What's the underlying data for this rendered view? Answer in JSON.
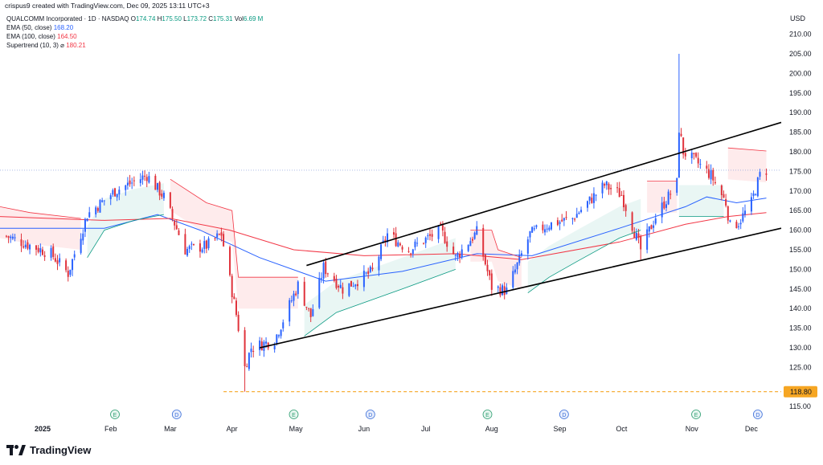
{
  "header": {
    "attribution": "crispus9 created with TradingView.com, Dec 09, 2025 13:11 UTC+3"
  },
  "legend": {
    "symbol": "QUALCOMM Incorporated · 1D · NASDAQ",
    "ohlc": [
      {
        "k": "O",
        "v": "174.74"
      },
      {
        "k": "H",
        "v": "175.50"
      },
      {
        "k": "L",
        "v": "173.72"
      },
      {
        "k": "C",
        "v": "175.31"
      },
      {
        "k": "Vol",
        "v": "6.69 M"
      }
    ],
    "indicators": [
      {
        "label": "EMA (50, close)",
        "value": "168.20",
        "color": "#2962ff"
      },
      {
        "label": "EMA (100, close)",
        "value": "164.50",
        "color": "#f23645"
      },
      {
        "label": "Supertrend (10, 3)",
        "value": "180.21",
        "color": "#f23645",
        "icon": "eye-off-icon"
      }
    ]
  },
  "branding": {
    "logo_text": "TradingView",
    "logo_icon": "tradingview-logo-icon"
  },
  "colors": {
    "up": "#2962ff",
    "down": "#e0323b",
    "ema50": "#2962ff",
    "ema100": "#f23645",
    "support": "#f6a623",
    "trendline": "#000000",
    "supertrend_up": "#089981",
    "supertrend_down": "#f23645"
  },
  "chart_data": {
    "type": "candlestick",
    "currency": "USD",
    "y_ticks": [
      "210.00",
      "205.00",
      "200.00",
      "195.00",
      "190.00",
      "185.00",
      "180.00",
      "175.00",
      "170.00",
      "165.00",
      "160.00",
      "155.00",
      "150.00",
      "145.00",
      "140.00",
      "135.00",
      "130.00",
      "125.00",
      "120.00",
      "115.00"
    ],
    "ylim": [
      113,
      213
    ],
    "x_labels": [
      "2025",
      "Feb",
      "Mar",
      "Apr",
      "May",
      "Jun",
      "Jul",
      "Aug",
      "Sep",
      "Oct",
      "Nov",
      "Dec"
    ],
    "x_label_dates": [
      "2025-01-02",
      "2025-02-03",
      "2025-03-03",
      "2025-04-01",
      "2025-05-01",
      "2025-06-02",
      "2025-07-01",
      "2025-08-01",
      "2025-09-02",
      "2025-10-01",
      "2025-11-03",
      "2025-12-01"
    ],
    "x_range": [
      "2024-12-13",
      "2025-12-15"
    ],
    "events": [
      {
        "type": "E",
        "date": "2025-02-05"
      },
      {
        "type": "D",
        "date": "2025-03-06"
      },
      {
        "type": "E",
        "date": "2025-04-30"
      },
      {
        "type": "D",
        "date": "2025-06-05"
      },
      {
        "type": "E",
        "date": "2025-07-30"
      },
      {
        "type": "D",
        "date": "2025-09-04"
      },
      {
        "type": "E",
        "date": "2025-11-05"
      },
      {
        "type": "D",
        "date": "2025-12-04"
      }
    ],
    "support_level": {
      "value": 118.8,
      "label": "118.80",
      "from": "2025-03-28"
    },
    "last_price": {
      "value": 175.31
    },
    "trendlines": [
      {
        "from": {
          "date": "2025-05-06",
          "value": 151.0
        },
        "to": {
          "date": "2025-12-15",
          "value": 187.5
        }
      },
      {
        "from": {
          "date": "2025-04-14",
          "value": 130.0
        },
        "to": {
          "date": "2025-12-15",
          "value": 160.5
        }
      }
    ],
    "key_points": [
      {
        "date": "2024-12-16",
        "value": 158.5
      },
      {
        "date": "2025-01-06",
        "value": 154.0
      },
      {
        "date": "2025-01-14",
        "value": 149.0
      },
      {
        "date": "2025-01-23",
        "value": 164.0
      },
      {
        "date": "2025-02-05",
        "value": 170.0
      },
      {
        "date": "2025-02-20",
        "value": 174.0
      },
      {
        "date": "2025-02-28",
        "value": 168.5
      },
      {
        "date": "2025-03-10",
        "value": 155.0
      },
      {
        "date": "2025-03-20",
        "value": 156.0
      },
      {
        "date": "2025-03-27",
        "value": 159.0
      },
      {
        "date": "2025-04-03",
        "value": 138.5
      },
      {
        "date": "2025-04-07",
        "value": 125.0
      },
      {
        "date": "2025-04-10",
        "value": 130.0
      },
      {
        "date": "2025-04-21",
        "value": 132.0
      },
      {
        "date": "2025-05-02",
        "value": 146.0
      },
      {
        "date": "2025-05-08",
        "value": 138.0
      },
      {
        "date": "2025-05-14",
        "value": 150.5
      },
      {
        "date": "2025-05-23",
        "value": 145.0
      },
      {
        "date": "2025-06-06",
        "value": 149.5
      },
      {
        "date": "2025-06-13",
        "value": 159.0
      },
      {
        "date": "2025-06-23",
        "value": 155.0
      },
      {
        "date": "2025-07-08",
        "value": 160.0
      },
      {
        "date": "2025-07-15",
        "value": 153.0
      },
      {
        "date": "2025-07-25",
        "value": 159.5
      },
      {
        "date": "2025-08-01",
        "value": 145.5
      },
      {
        "date": "2025-08-08",
        "value": 144.5
      },
      {
        "date": "2025-08-19",
        "value": 159.0
      },
      {
        "date": "2025-08-28",
        "value": 161.5
      },
      {
        "date": "2025-09-08",
        "value": 163.0
      },
      {
        "date": "2025-09-23",
        "value": 171.5
      },
      {
        "date": "2025-10-01",
        "value": 169.0
      },
      {
        "date": "2025-10-10",
        "value": 155.0
      },
      {
        "date": "2025-10-17",
        "value": 163.5
      },
      {
        "date": "2025-10-27",
        "value": 172.0
      },
      {
        "date": "2025-10-28",
        "value": 186.0
      },
      {
        "date": "2025-10-30",
        "value": 180.0
      },
      {
        "date": "2025-11-06",
        "value": 177.0
      },
      {
        "date": "2025-11-12",
        "value": 174.0
      },
      {
        "date": "2025-11-19",
        "value": 167.0
      },
      {
        "date": "2025-11-21",
        "value": 161.0
      },
      {
        "date": "2025-11-25",
        "value": 162.0
      },
      {
        "date": "2025-12-01",
        "value": 167.0
      },
      {
        "date": "2025-12-05",
        "value": 174.0
      },
      {
        "date": "2025-12-08",
        "value": 175.31
      }
    ],
    "ema50_points": [
      {
        "date": "2024-12-13",
        "value": 160.5
      },
      {
        "date": "2025-01-31",
        "value": 160.5
      },
      {
        "date": "2025-02-25",
        "value": 164.0
      },
      {
        "date": "2025-03-17",
        "value": 160.0
      },
      {
        "date": "2025-04-14",
        "value": 153.0
      },
      {
        "date": "2025-05-15",
        "value": 147.0
      },
      {
        "date": "2025-06-20",
        "value": 149.5
      },
      {
        "date": "2025-07-25",
        "value": 154.0
      },
      {
        "date": "2025-08-20",
        "value": 153.5
      },
      {
        "date": "2025-09-30",
        "value": 160.5
      },
      {
        "date": "2025-10-31",
        "value": 166.0
      },
      {
        "date": "2025-11-10",
        "value": 168.5
      },
      {
        "date": "2025-11-24",
        "value": 167.0
      },
      {
        "date": "2025-12-08",
        "value": 168.2
      }
    ],
    "ema100_points": [
      {
        "date": "2024-12-13",
        "value": 163.5
      },
      {
        "date": "2025-01-31",
        "value": 162.5
      },
      {
        "date": "2025-03-03",
        "value": 163.0
      },
      {
        "date": "2025-03-31",
        "value": 160.0
      },
      {
        "date": "2025-04-30",
        "value": 155.0
      },
      {
        "date": "2025-06-02",
        "value": 153.5
      },
      {
        "date": "2025-07-15",
        "value": 154.0
      },
      {
        "date": "2025-08-15",
        "value": 152.5
      },
      {
        "date": "2025-09-30",
        "value": 157.0
      },
      {
        "date": "2025-10-31",
        "value": 161.5
      },
      {
        "date": "2025-11-20",
        "value": 163.5
      },
      {
        "date": "2025-12-08",
        "value": 164.5
      }
    ],
    "supertrend_segments": [
      {
        "trend": "down",
        "points": [
          {
            "date": "2024-12-13",
            "value": 166.0
          },
          {
            "date": "2024-12-27",
            "value": 164.5
          },
          {
            "date": "2025-01-20",
            "value": 163.0
          }
        ]
      },
      {
        "trend": "up",
        "points": [
          {
            "date": "2025-01-23",
            "value": 153.0
          },
          {
            "date": "2025-01-31",
            "value": 160.0
          },
          {
            "date": "2025-02-14",
            "value": 162.5
          },
          {
            "date": "2025-02-28",
            "value": 164.0
          }
        ]
      },
      {
        "trend": "down",
        "points": [
          {
            "date": "2025-03-03",
            "value": 173.0
          },
          {
            "date": "2025-03-20",
            "value": 167.0
          },
          {
            "date": "2025-04-01",
            "value": 165.0
          },
          {
            "date": "2025-04-04",
            "value": 148.0
          },
          {
            "date": "2025-05-02",
            "value": 148.0
          }
        ]
      },
      {
        "trend": "up",
        "points": [
          {
            "date": "2025-05-05",
            "value": 133.0
          },
          {
            "date": "2025-05-20",
            "value": 139.0
          },
          {
            "date": "2025-06-20",
            "value": 145.0
          },
          {
            "date": "2025-07-15",
            "value": 150.0
          }
        ]
      },
      {
        "trend": "down",
        "points": [
          {
            "date": "2025-07-22",
            "value": 160.0
          },
          {
            "date": "2025-08-01",
            "value": 160.0
          },
          {
            "date": "2025-08-04",
            "value": 155.0
          },
          {
            "date": "2025-08-15",
            "value": 153.0
          }
        ]
      },
      {
        "trend": "up",
        "points": [
          {
            "date": "2025-08-18",
            "value": 144.0
          },
          {
            "date": "2025-08-28",
            "value": 148.0
          },
          {
            "date": "2025-09-10",
            "value": 152.0
          },
          {
            "date": "2025-09-30",
            "value": 158.0
          },
          {
            "date": "2025-10-10",
            "value": 160.0
          }
        ]
      },
      {
        "trend": "down",
        "points": [
          {
            "date": "2025-10-13",
            "value": 172.5
          },
          {
            "date": "2025-10-27",
            "value": 172.5
          }
        ]
      },
      {
        "trend": "up",
        "points": [
          {
            "date": "2025-10-28",
            "value": 163.5
          },
          {
            "date": "2025-11-18",
            "value": 163.5
          }
        ]
      },
      {
        "trend": "down",
        "points": [
          {
            "date": "2025-11-20",
            "value": 181.0
          },
          {
            "date": "2025-12-08",
            "value": 180.21
          }
        ]
      }
    ]
  }
}
